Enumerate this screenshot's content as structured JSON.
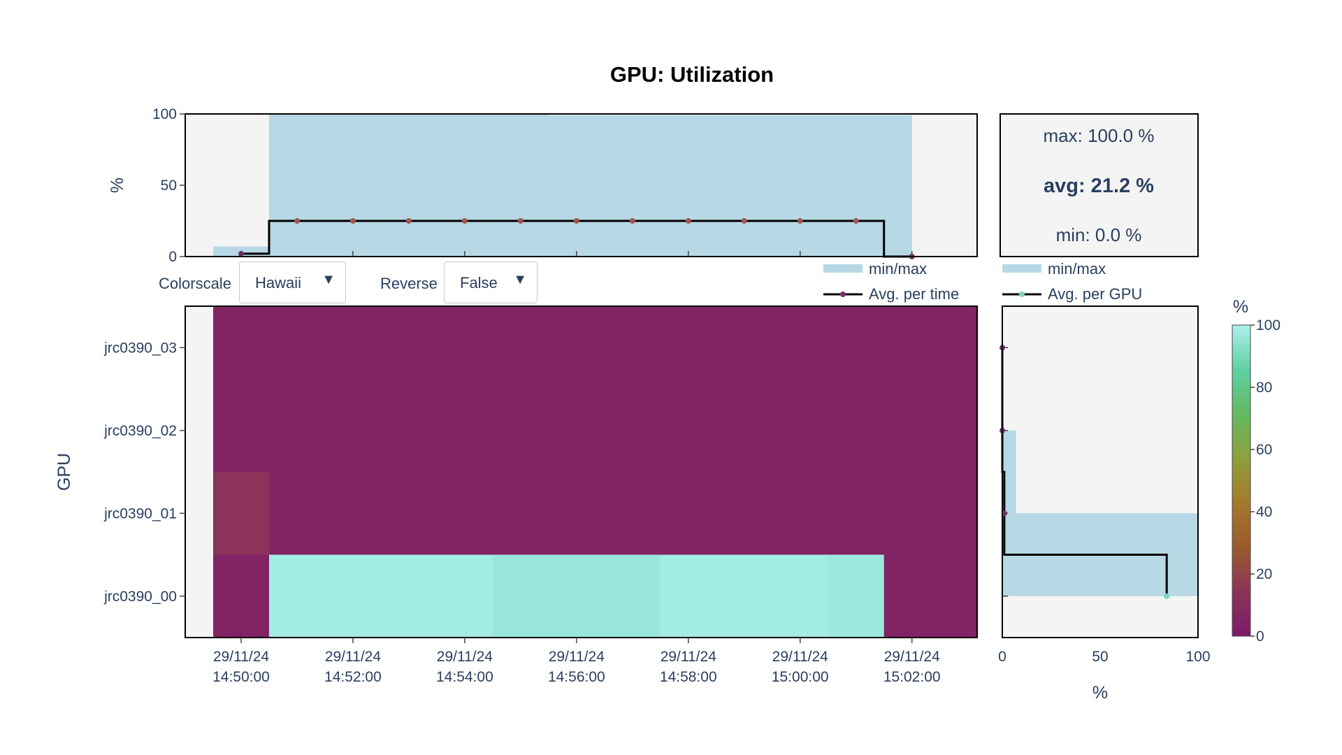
{
  "controls": {
    "colorscale_label": "Colorscale",
    "colorscale_value": "Hawaii",
    "reverse_label": "Reverse",
    "reverse_value": "False",
    "arrow_glyph": "▼"
  },
  "stats": {
    "max": "max: 100.0 %",
    "avg": "avg: 21.2 %",
    "min": "min: 0.0 %"
  },
  "legend_top": {
    "minmax": "min/max",
    "avg": "Avg. per time"
  },
  "legend_right": {
    "minmax": "min/max",
    "avg": "Avg. per GPU"
  },
  "colors": {
    "band": "#b7d8e5",
    "line": "#000000",
    "panel_bg": "#f4f4f4",
    "marker_time": "#a0574e",
    "marker_gpu": "#7dd7b4",
    "marker_purple": "#7b2d6e"
  },
  "chart_data": [
    {
      "type": "area",
      "title": "GPU: Utilization",
      "ylabel": "%",
      "ylim": [
        0,
        100
      ],
      "y_ticks": [
        "0",
        "50",
        "100"
      ],
      "series": [
        {
          "name": "min/max",
          "x": [
            "14:49:00",
            "14:49:30",
            "14:50:30",
            "14:52:30",
            "14:55:30",
            "14:58:30",
            "15:01:30",
            "15:02:00"
          ],
          "min": [
            0,
            0,
            0,
            0,
            0,
            0,
            0,
            0
          ],
          "max": [
            0,
            7,
            100,
            100,
            99,
            99,
            99,
            0
          ]
        },
        {
          "name": "Avg. per time",
          "x": [
            "14:50:00",
            "14:51:00",
            "14:52:00",
            "14:53:00",
            "14:54:00",
            "14:55:00",
            "14:56:00",
            "14:57:00",
            "14:58:00",
            "14:59:00",
            "15:00:00",
            "15:01:00",
            "15:02:00"
          ],
          "values": [
            2,
            25,
            25,
            25,
            25,
            25,
            25,
            25,
            25,
            25,
            25,
            25,
            0
          ]
        }
      ]
    },
    {
      "type": "heatmap",
      "xlabel": "",
      "ylabel": "GPU",
      "x_tick_labels": [
        [
          "29/11/24",
          "14:50:00"
        ],
        [
          "29/11/24",
          "14:52:00"
        ],
        [
          "29/11/24",
          "14:54:00"
        ],
        [
          "29/11/24",
          "14:56:00"
        ],
        [
          "29/11/24",
          "14:58:00"
        ],
        [
          "29/11/24",
          "15:00:00"
        ],
        [
          "29/11/24",
          "15:02:00"
        ]
      ],
      "x_time_range": [
        "14:49:00",
        "15:03:10"
      ],
      "gpus": [
        "jrc0390_00",
        "jrc0390_01",
        "jrc0390_02",
        "jrc0390_03"
      ],
      "cells": [
        {
          "gpu": "jrc0390_00",
          "segments": [
            {
              "from": "14:49:30",
              "to": "14:50:30",
              "value": 5
            },
            {
              "from": "14:50:30",
              "to": "14:54:30",
              "value": 98
            },
            {
              "from": "14:54:30",
              "to": "14:57:30",
              "value": 96
            },
            {
              "from": "14:57:30",
              "to": "15:00:30",
              "value": 98
            },
            {
              "from": "15:00:30",
              "to": "15:01:30",
              "value": 97
            },
            {
              "from": "15:01:30",
              "to": "15:03:10",
              "value": 5
            }
          ]
        },
        {
          "gpu": "jrc0390_01",
          "segments": [
            {
              "from": "14:49:30",
              "to": "14:50:30",
              "value": 14
            },
            {
              "from": "14:50:30",
              "to": "15:03:10",
              "value": 5
            }
          ]
        },
        {
          "gpu": "jrc0390_02",
          "segments": [
            {
              "from": "14:49:30",
              "to": "15:03:10",
              "value": 5
            }
          ]
        },
        {
          "gpu": "jrc0390_03",
          "segments": [
            {
              "from": "14:49:30",
              "to": "15:03:10",
              "value": 5
            }
          ]
        }
      ]
    },
    {
      "type": "bar",
      "orientation": "horizontal",
      "xlabel": "%",
      "xlim": [
        0,
        100
      ],
      "x_ticks": [
        "0",
        "50",
        "100"
      ],
      "categories": [
        "jrc0390_00",
        "jrc0390_01",
        "jrc0390_02",
        "jrc0390_03"
      ],
      "series": [
        {
          "name": "min/max",
          "min": [
            0,
            0,
            0,
            0
          ],
          "max": [
            100,
            7,
            0,
            0
          ]
        },
        {
          "name": "Avg. per GPU",
          "values": [
            84,
            1,
            0,
            0
          ]
        }
      ]
    },
    {
      "type": "colorbar",
      "title": "%",
      "range": [
        0,
        100
      ],
      "ticks": [
        "0",
        "20",
        "40",
        "60",
        "80",
        "100"
      ],
      "colorscale_stops": [
        "#7d1a6a",
        "#8b3458",
        "#9b5a2d",
        "#a5792c",
        "#8fa03a",
        "#63ba61",
        "#5fd0a3",
        "#aef0ef"
      ]
    }
  ]
}
